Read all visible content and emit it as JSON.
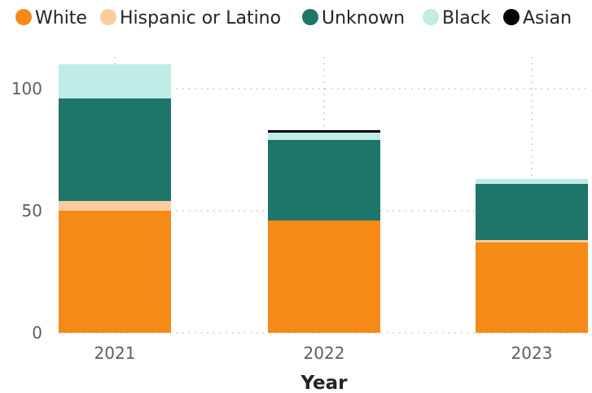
{
  "chart_data": {
    "type": "bar",
    "stacked": true,
    "xlabel": "Year",
    "ylabel": "",
    "categories": [
      "2021",
      "2022",
      "2023"
    ],
    "ylim": [
      0,
      113
    ],
    "yticks": [
      0,
      50,
      100
    ],
    "grid": true,
    "legend": "top-left",
    "series": [
      {
        "name": "White",
        "color": "#f58a17",
        "values": [
          50,
          46,
          37
        ]
      },
      {
        "name": "Hispanic or Latino",
        "color": "#fbcd9e",
        "values": [
          4,
          0,
          1
        ]
      },
      {
        "name": "Unknown",
        "color": "#1e7569",
        "values": [
          42,
          33,
          23
        ]
      },
      {
        "name": "Black",
        "color": "#c0ece6",
        "values": [
          14,
          3,
          2
        ]
      },
      {
        "name": "Asian",
        "color": "#000000",
        "values": [
          0,
          1,
          0
        ]
      }
    ]
  }
}
